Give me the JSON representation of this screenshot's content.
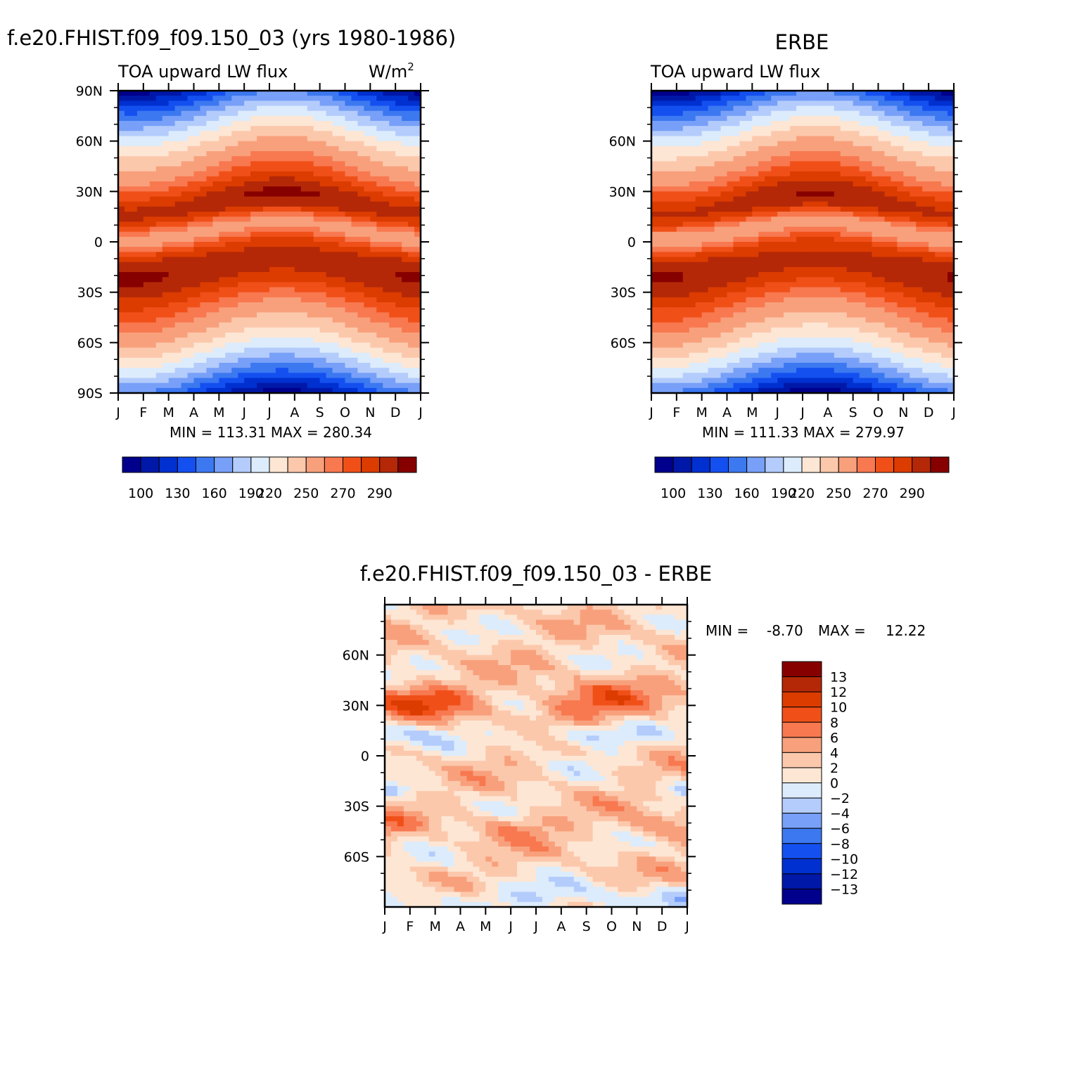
{
  "panels": [
    {
      "id": "model",
      "title": "f.e20.FHIST.f09_f09.150_03 (yrs 1980-1986)",
      "left_label": "TOA upward LW flux",
      "units_label": "W/m",
      "units_sup": "2",
      "stats_text": "MIN = 113.31 MAX = 280.34"
    },
    {
      "id": "obs",
      "title": "ERBE",
      "left_label": "TOA upward LW flux",
      "units_label": "",
      "units_sup": "",
      "stats_text": "MIN = 111.33 MAX = 279.97"
    },
    {
      "id": "diff",
      "title": "f.e20.FHIST.f09_f09.150_03 - ERBE",
      "stats_min_label": "MIN =",
      "stats_min_value": "-8.70",
      "stats_max_label": "MAX =",
      "stats_max_value": "12.22"
    }
  ],
  "chart_data": [
    {
      "type": "heatmap",
      "title": "f.e20.FHIST.f09_f09.150_03 (yrs 1980-1986)",
      "subtitle": "TOA upward LW flux",
      "units": "W/m2",
      "x_tick_labels": [
        "J",
        "F",
        "M",
        "A",
        "M",
        "J",
        "J",
        "A",
        "S",
        "O",
        "N",
        "D",
        "J"
      ],
      "y_tick_labels": [
        "90N",
        "60N",
        "30N",
        "0",
        "30S",
        "60S",
        "90S"
      ],
      "y_tick_values": [
        90,
        60,
        30,
        0,
        -30,
        -60,
        -90
      ],
      "ylim": [
        -90,
        90
      ],
      "min": 113.31,
      "max": 280.34,
      "colorbar_labels": [
        "100",
        "130",
        "160",
        "190",
        "220",
        "250",
        "270",
        "290"
      ]
    },
    {
      "type": "heatmap",
      "title": "ERBE",
      "subtitle": "TOA upward LW flux",
      "units": "W/m2",
      "x_tick_labels": [
        "J",
        "F",
        "M",
        "A",
        "M",
        "J",
        "J",
        "A",
        "S",
        "O",
        "N",
        "D",
        "J"
      ],
      "y_tick_labels": [
        "60N",
        "30N",
        "0",
        "30S",
        "60S"
      ],
      "y_tick_values": [
        60,
        30,
        0,
        -30,
        -60
      ],
      "ylim": [
        -90,
        90
      ],
      "min": 111.33,
      "max": 279.97,
      "colorbar_labels": [
        "100",
        "130",
        "160",
        "190",
        "220",
        "250",
        "270",
        "290"
      ]
    },
    {
      "type": "heatmap",
      "title": "f.e20.FHIST.f09_f09.150_03 - ERBE",
      "x_tick_labels": [
        "J",
        "F",
        "M",
        "A",
        "M",
        "J",
        "J",
        "A",
        "S",
        "O",
        "N",
        "D",
        "J"
      ],
      "y_tick_labels": [
        "60N",
        "30N",
        "0",
        "30S",
        "60S"
      ],
      "y_tick_values": [
        60,
        30,
        0,
        -30,
        -60
      ],
      "ylim": [
        -90,
        90
      ],
      "min": -8.7,
      "max": 12.22,
      "colorbar_labels": [
        "13",
        "12",
        "10",
        "8",
        "6",
        "4",
        "2",
        "0",
        "-2",
        "-4",
        "-6",
        "-8",
        "-10",
        "-12",
        "-13"
      ]
    }
  ],
  "colors": {
    "abs_palette": [
      "#00008c",
      "#0018a8",
      "#0030d0",
      "#1450f0",
      "#3c78f0",
      "#78a0f8",
      "#b4ccfc",
      "#dcecfc",
      "#fde6d4",
      "#fcc8ac",
      "#f8a07c",
      "#f87850",
      "#f05018",
      "#dc3c00",
      "#b42808",
      "#870000"
    ],
    "diff_palette": [
      "#870000",
      "#b42808",
      "#dc3c00",
      "#f05018",
      "#f87850",
      "#f8a07c",
      "#fcc8ac",
      "#fde6d4",
      "#dcecfc",
      "#b4ccfc",
      "#78a0f8",
      "#3c78f0",
      "#1450f0",
      "#0030d0",
      "#0018a8",
      "#00008c"
    ]
  }
}
